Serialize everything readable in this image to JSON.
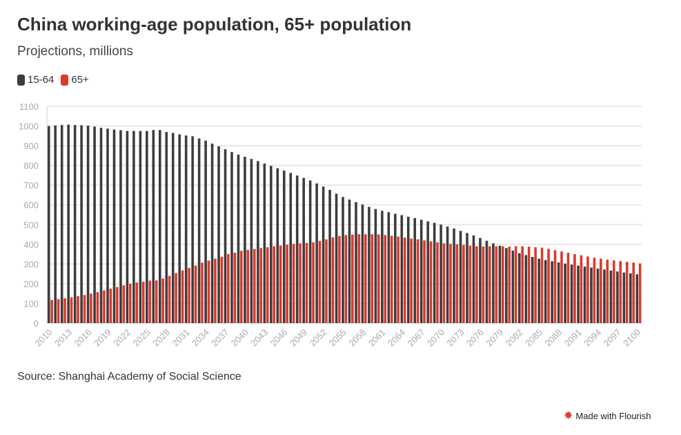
{
  "chart_data": {
    "type": "bar",
    "title": "China working-age population, 65+ population",
    "subtitle": "Projections, millions",
    "source": "Source: Shanghai Academy of Social Science",
    "ylim": [
      0,
      1100
    ],
    "yticks": [
      0,
      100,
      200,
      300,
      400,
      500,
      600,
      700,
      800,
      900,
      1000,
      1100
    ],
    "grid": true,
    "legend_position": "top-left",
    "x_start": 2010,
    "x_end": 2100,
    "x_tick_step": 3,
    "series": [
      {
        "name": "15-64",
        "color": "#3d3d3d",
        "values": [
          1000,
          1003,
          1005,
          1007,
          1005,
          1004,
          1002,
          997,
          991,
          987,
          982,
          979,
          975,
          975,
          975,
          975,
          980,
          980,
          970,
          965,
          958,
          952,
          948,
          937,
          926,
          911,
          897,
          882,
          868,
          855,
          844,
          833,
          822,
          810,
          798,
          786,
          774,
          762,
          749,
          737,
          724,
          709,
          693,
          676,
          657,
          640,
          627,
          614,
          602,
          590,
          579,
          570,
          563,
          555,
          548,
          540,
          533,
          525,
          517,
          509,
          500,
          490,
          480,
          468,
          457,
          445,
          432,
          418,
          405,
          393,
          381,
          368,
          355,
          345,
          336,
          327,
          320,
          314,
          308,
          302,
          297,
          292,
          287,
          282,
          277,
          272,
          267,
          262,
          257,
          253,
          248
        ]
      },
      {
        "name": "65+",
        "color": "#d93a2f",
        "values": [
          118,
          122,
          126,
          131,
          137,
          143,
          150,
          158,
          166,
          175,
          183,
          192,
          200,
          206,
          210,
          216,
          217,
          226,
          240,
          254,
          268,
          280,
          292,
          307,
          317,
          327,
          337,
          350,
          358,
          367,
          372,
          376,
          381,
          385,
          390,
          394,
          398,
          402,
          405,
          407,
          410,
          418,
          425,
          435,
          442,
          447,
          449,
          451,
          451,
          451,
          450,
          447,
          443,
          439,
          434,
          429,
          425,
          420,
          415,
          410,
          405,
          402,
          400,
          397,
          393,
          390,
          389,
          390,
          390,
          390,
          388,
          390,
          390,
          388,
          385,
          383,
          377,
          370,
          364,
          357,
          350,
          344,
          338,
          332,
          327,
          322,
          318,
          315,
          311,
          307,
          303
        ]
      }
    ]
  },
  "footer": {
    "credit": "Made with Flourish"
  }
}
